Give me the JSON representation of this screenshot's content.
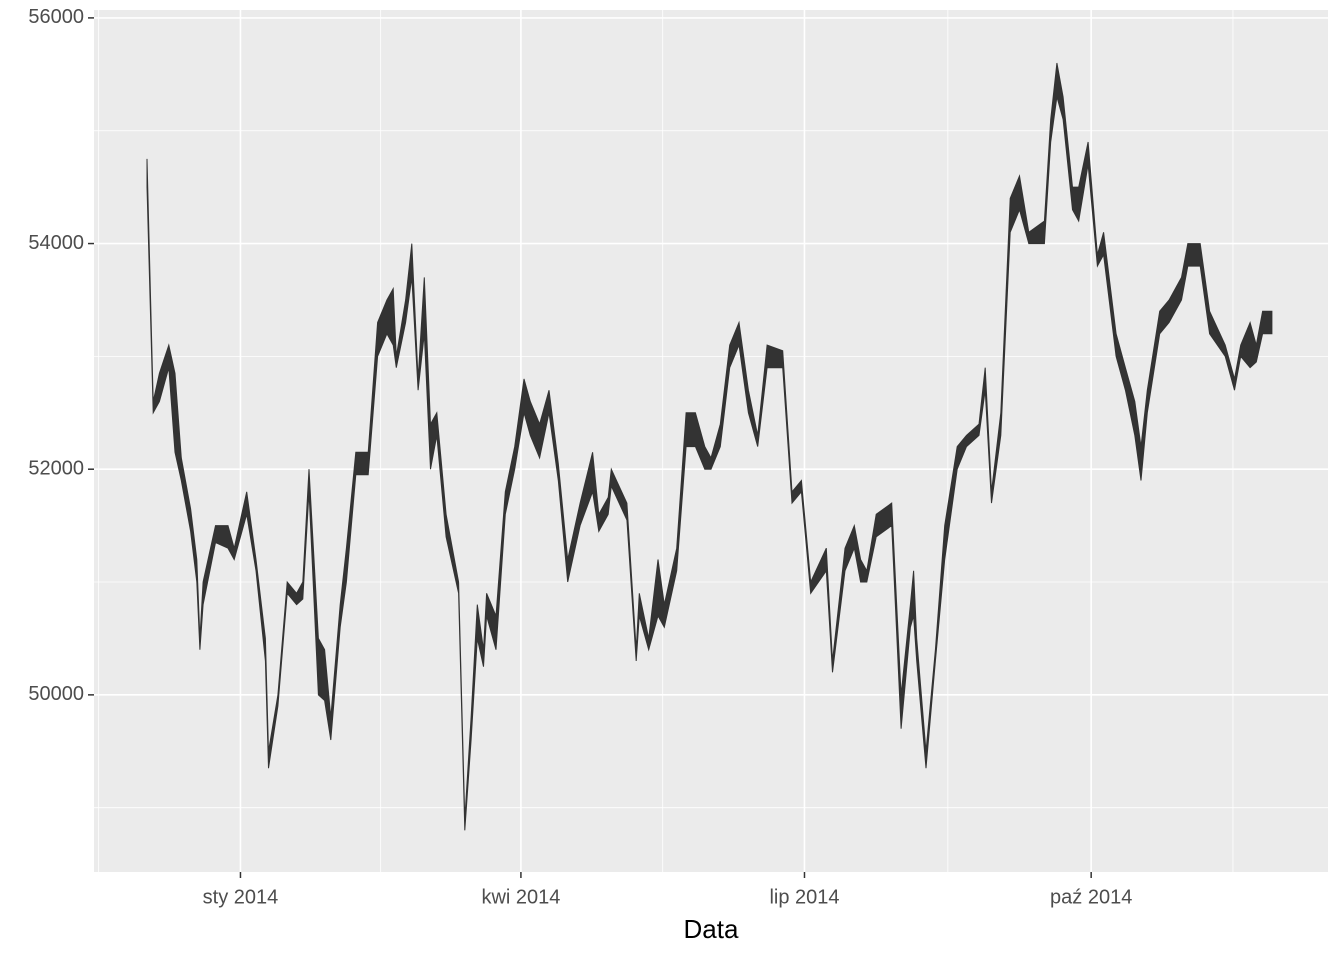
{
  "chart_data": {
    "type": "ribbon",
    "x_label": "Data",
    "color": "#333333",
    "grid": true,
    "x": [
      -30,
      -28,
      -26,
      -23,
      -21,
      -19,
      -16,
      -14,
      -13,
      -12,
      -8,
      -4,
      -2,
      2,
      5,
      8,
      9,
      12,
      15,
      18,
      20,
      22,
      25,
      27,
      29,
      32,
      34,
      37,
      41,
      44,
      47,
      49,
      50,
      53,
      55,
      57,
      59,
      61,
      63,
      66,
      70,
      72,
      74,
      76,
      78,
      79,
      82,
      85,
      88,
      91,
      93,
      96,
      99,
      102,
      105,
      109,
      113,
      115,
      118,
      119,
      124,
      127,
      128,
      131,
      134,
      136,
      140,
      143,
      146,
      149,
      151,
      154,
      157,
      160,
      163,
      166,
      169,
      174,
      177,
      180,
      183,
      188,
      190,
      194,
      197,
      199,
      201,
      204,
      209,
      212,
      215,
      216,
      217,
      220,
      223,
      226,
      230,
      233,
      237,
      239,
      241,
      244,
      247,
      250,
      253,
      258,
      260,
      262,
      264,
      267,
      269,
      272,
      275,
      277,
      281,
      284,
      287,
      289,
      291,
      295,
      298,
      302,
      304,
      308,
      311,
      316,
      319,
      321,
      324,
      326,
      328,
      331
    ],
    "ymax": [
      54750,
      52600,
      52850,
      53100,
      52850,
      52100,
      51650,
      51200,
      50500,
      51000,
      51500,
      51500,
      51300,
      51800,
      51200,
      50500,
      49500,
      50000,
      51000,
      50900,
      51000,
      52000,
      50500,
      50400,
      49800,
      50800,
      51300,
      52150,
      52150,
      53300,
      53500,
      53600,
      53000,
      53500,
      54000,
      52800,
      53700,
      52400,
      52500,
      51600,
      51000,
      48900,
      49800,
      50800,
      50400,
      50900,
      50700,
      51800,
      52200,
      52800,
      52600,
      52400,
      52700,
      52050,
      51200,
      51700,
      52150,
      51600,
      51750,
      52000,
      51700,
      50400,
      50900,
      50500,
      51200,
      50800,
      51300,
      52500,
      52500,
      52200,
      52100,
      52400,
      53100,
      53300,
      52700,
      52300,
      53100,
      53050,
      51800,
      51900,
      51000,
      51300,
      50300,
      51300,
      51500,
      51200,
      51100,
      51600,
      51700,
      50000,
      50800,
      51100,
      50500,
      49500,
      50400,
      51500,
      52200,
      52300,
      52400,
      52900,
      51800,
      52500,
      54400,
      54600,
      54100,
      54200,
      55100,
      55600,
      55300,
      54500,
      54500,
      54900,
      53900,
      54100,
      53200,
      52900,
      52600,
      52200,
      52700,
      53400,
      53500,
      53700,
      54000,
      54000,
      53400,
      53100,
      52800,
      53100,
      53300,
      53100,
      53400,
      53400
    ],
    "ymin": [
      54500,
      52500,
      52600,
      52900,
      52150,
      51900,
      51450,
      51000,
      50400,
      50800,
      51350,
      51300,
      51200,
      51600,
      51100,
      50300,
      49350,
      49900,
      50900,
      50800,
      50850,
      51800,
      50000,
      49950,
      49600,
      50600,
      51000,
      51950,
      51950,
      53000,
      53200,
      53100,
      52900,
      53300,
      53700,
      52700,
      53200,
      52000,
      52300,
      51400,
      50900,
      48800,
      49600,
      50500,
      50250,
      50700,
      50400,
      51600,
      52000,
      52500,
      52300,
      52100,
      52500,
      51900,
      51000,
      51500,
      51800,
      51450,
      51600,
      51850,
      51550,
      50300,
      50700,
      50400,
      50700,
      50600,
      51100,
      52200,
      52200,
      52000,
      52000,
      52200,
      52900,
      53100,
      52500,
      52200,
      52900,
      52900,
      51700,
      51800,
      50900,
      51100,
      50200,
      51100,
      51300,
      51000,
      51000,
      51400,
      51500,
      49700,
      50600,
      50700,
      50300,
      49350,
      50300,
      51200,
      52000,
      52200,
      52300,
      52700,
      51700,
      52300,
      54100,
      54300,
      54000,
      54000,
      54900,
      55300,
      55100,
      54300,
      54200,
      54700,
      53800,
      53900,
      53000,
      52700,
      52300,
      51900,
      52500,
      53200,
      53300,
      53500,
      53800,
      53800,
      53200,
      53000,
      52700,
      53000,
      52900,
      52950,
      53200,
      53200
    ],
    "xlim": [
      -47,
      349
    ],
    "xticks": [
      {
        "value": 0,
        "label": "sty 2014"
      },
      {
        "value": 90,
        "label": "kwi 2014"
      },
      {
        "value": 181,
        "label": "lip 2014"
      },
      {
        "value": 273,
        "label": "paź 2014"
      }
    ],
    "xminor": [
      -45.5,
      45,
      135.5,
      227,
      318.5
    ],
    "ylim": [
      48430,
      56070
    ],
    "yticks": [
      50000,
      52000,
      54000,
      56000
    ],
    "yminor": [
      49000,
      51000,
      53000,
      55000
    ]
  }
}
